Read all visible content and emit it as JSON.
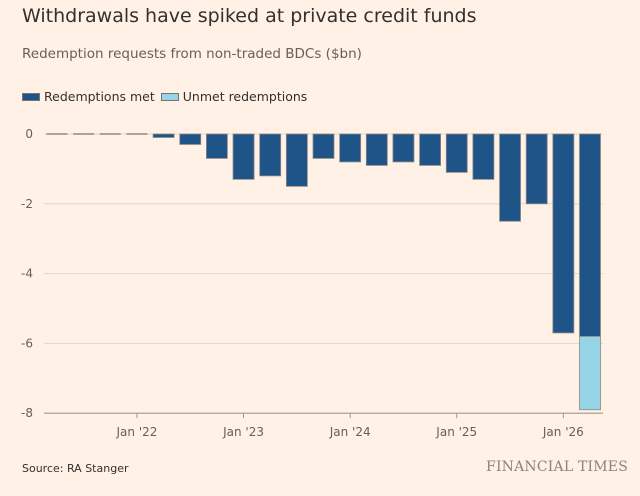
{
  "chart_data": {
    "type": "bar",
    "stacked": true,
    "title": "Withdrawals have spiked at private credit funds",
    "subtitle": "Redemption requests from non-traded BDCs ($bn)",
    "source": "Source: RA Stanger",
    "logo": "FINANCIAL TIMES",
    "ylim": [
      -8,
      0
    ],
    "yticks": [
      0,
      -2,
      -4,
      -6,
      -8
    ],
    "xtick_labels": [
      "Jan '22",
      "Jan '23",
      "Jan '24",
      "Jan '25",
      "Jan '26"
    ],
    "grid": true,
    "legend_position": "top-left",
    "series": [
      {
        "name": "Redemptions met",
        "color": "#1F5489",
        "values": [
          0,
          0,
          0,
          0,
          -0.1,
          -0.3,
          -0.7,
          -1.3,
          -1.2,
          -1.5,
          -0.7,
          -0.8,
          -0.9,
          -0.8,
          -0.9,
          -1.1,
          -1.3,
          -2.5,
          -2.0,
          -5.7,
          -5.8
        ]
      },
      {
        "name": "Unmet redemptions",
        "color": "#96D4E8",
        "values": [
          0,
          0,
          0,
          0,
          0,
          0,
          0,
          0,
          0,
          0,
          0,
          0,
          0,
          0,
          0,
          0,
          0,
          0,
          0,
          0,
          -2.1
        ]
      }
    ]
  }
}
